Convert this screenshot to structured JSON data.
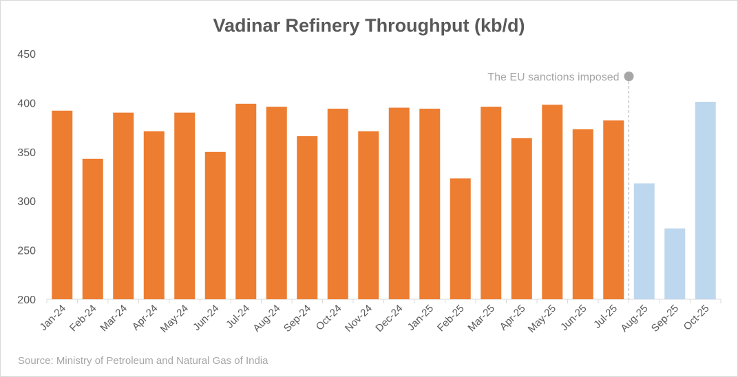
{
  "chart_data": {
    "type": "bar",
    "title": "Vadinar Refinery Throughput (kb/d)",
    "xlabel": "",
    "ylabel": "",
    "ylim": [
      200,
      450
    ],
    "yticks": [
      200,
      250,
      300,
      350,
      400,
      450
    ],
    "grid": false,
    "categories": [
      "Jan-24",
      "Feb-24",
      "Mar-24",
      "Apr-24",
      "May-24",
      "Jun-24",
      "Jul-24",
      "Aug-24",
      "Sep-24",
      "Oct-24",
      "Nov-24",
      "Dec-24",
      "Jan-25",
      "Feb-25",
      "Mar-25",
      "Apr-25",
      "May-25",
      "Jun-25",
      "Jul-25",
      "Aug-25",
      "Sep-25",
      "Oct-25"
    ],
    "values": [
      392,
      343,
      390,
      371,
      390,
      350,
      399,
      396,
      366,
      394,
      371,
      395,
      394,
      323,
      396,
      364,
      398,
      373,
      382,
      318,
      272,
      401
    ],
    "colors": {
      "before": "#ED7D31",
      "after": "#BDD7EE",
      "annotation": "#a6a6a6"
    },
    "highlight_from_index": 19,
    "annotation": {
      "text": "The EU sanctions imposed",
      "between": [
        "Jul-25",
        "Aug-25"
      ]
    },
    "source": "Source: Ministry of Petroleum and Natural Gas of India"
  }
}
